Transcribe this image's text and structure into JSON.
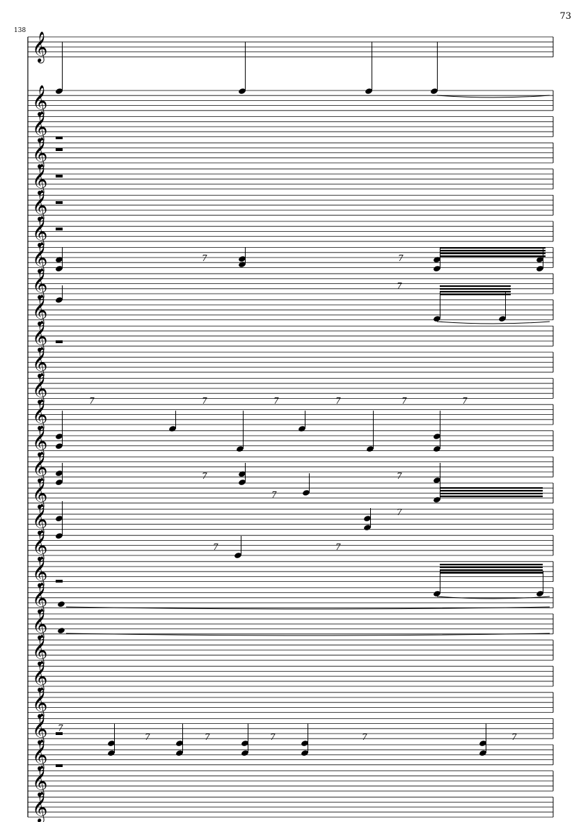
{
  "page": {
    "page_number": "73",
    "measure_number": "138"
  },
  "score": {
    "clef": "treble-clef",
    "staff_count": 29,
    "ink_color": "#000000",
    "paper_color": "#ffffff"
  }
}
